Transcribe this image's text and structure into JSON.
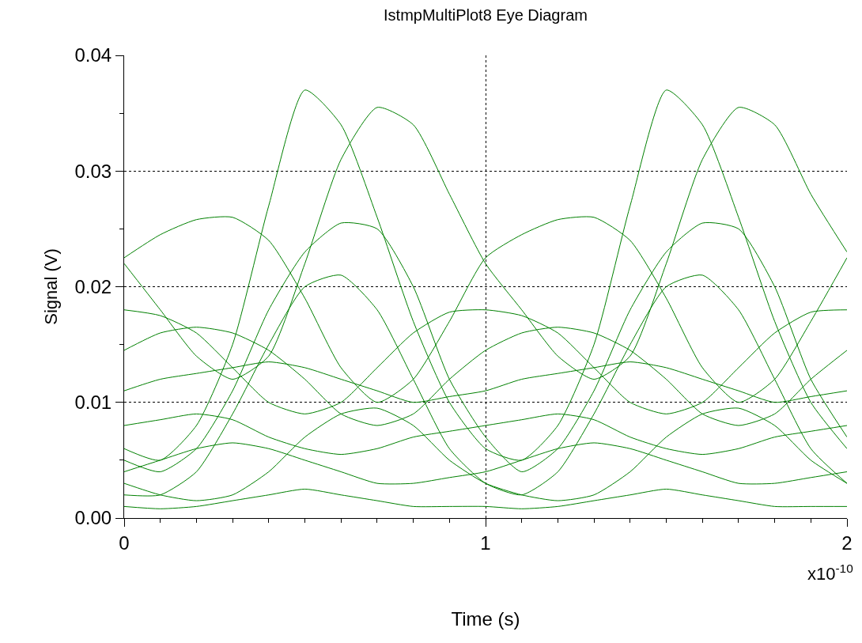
{
  "chart_data": {
    "type": "line",
    "title": "IstmpMultiPlot8 Eye Diagram",
    "xlabel": "Time (s)",
    "ylabel": "Signal (V)",
    "annotations": [
      "x10$^{-10}$"
    ],
    "x": [
      0.0,
      0.1,
      0.2,
      0.3,
      0.4,
      0.5,
      0.6,
      0.7,
      0.8,
      0.9,
      1.0,
      1.1,
      1.2,
      1.3,
      1.4,
      1.5,
      1.6,
      1.7,
      1.8,
      1.9,
      2.0
    ],
    "xlim": [
      0,
      2
    ],
    "xticks": [
      0,
      {
        "value": 0.1,
        "label": null
      },
      {
        "value": 0.2,
        "label": null
      },
      {
        "value": 0.3,
        "label": null
      },
      {
        "value": 0.4,
        "label": null
      },
      {
        "value": 0.5,
        "label": null
      },
      {
        "value": 0.6,
        "label": null
      },
      {
        "value": 0.7,
        "label": null
      },
      {
        "value": 0.8,
        "label": null
      },
      {
        "value": 0.9,
        "label": null
      },
      1,
      {
        "value": 1.1,
        "label": null
      },
      {
        "value": 1.2,
        "label": null
      },
      {
        "value": 1.3,
        "label": null
      },
      {
        "value": 1.4,
        "label": null
      },
      {
        "value": 1.5,
        "label": null
      },
      {
        "value": 1.6,
        "label": null
      },
      {
        "value": 1.7,
        "label": null
      },
      {
        "value": 1.8,
        "label": null
      },
      {
        "value": 1.9,
        "label": null
      },
      2
    ],
    "ylim": [
      0,
      0.04
    ],
    "yticks": [
      {
        "value": 0,
        "label": "0.00"
      },
      {
        "value": 0.005,
        "label": null
      },
      {
        "value": 0.01,
        "label": "0.01"
      },
      {
        "value": 0.015,
        "label": null
      },
      {
        "value": 0.02,
        "label": "0.02"
      },
      {
        "value": 0.025,
        "label": null
      },
      {
        "value": 0.03,
        "label": "0.03"
      },
      {
        "value": 0.035,
        "label": null
      },
      {
        "value": 0.04,
        "label": "0.04"
      }
    ],
    "grid": true,
    "line_style": "solid",
    "series": [
      {
        "color": "#008000",
        "values": [
          0.006,
          0.005,
          0.008,
          0.015,
          0.027,
          0.037,
          0.034,
          0.026,
          0.017,
          0.01,
          0.006,
          0.005,
          0.008,
          0.015,
          0.027,
          0.037,
          0.034,
          0.026,
          0.017,
          0.01,
          0.006
        ]
      },
      {
        "color": "#008000",
        "values": [
          0.022,
          0.018,
          0.014,
          0.012,
          0.014,
          0.022,
          0.031,
          0.0355,
          0.034,
          0.028,
          0.022,
          0.018,
          0.014,
          0.012,
          0.014,
          0.022,
          0.031,
          0.0355,
          0.034,
          0.028,
          0.023
        ]
      },
      {
        "color": "#008000",
        "values": [
          0.0225,
          0.0245,
          0.0258,
          0.026,
          0.024,
          0.019,
          0.013,
          0.01,
          0.012,
          0.017,
          0.0225,
          0.0245,
          0.0258,
          0.026,
          0.024,
          0.019,
          0.013,
          0.01,
          0.012,
          0.017,
          0.0225
        ]
      },
      {
        "color": "#008000",
        "values": [
          0.005,
          0.004,
          0.006,
          0.011,
          0.018,
          0.023,
          0.0255,
          0.025,
          0.02,
          0.012,
          0.007,
          0.004,
          0.006,
          0.011,
          0.018,
          0.023,
          0.0255,
          0.025,
          0.02,
          0.012,
          0.007
        ]
      },
      {
        "color": "#008000",
        "values": [
          0.002,
          0.002,
          0.004,
          0.009,
          0.015,
          0.02,
          0.021,
          0.018,
          0.012,
          0.006,
          0.003,
          0.002,
          0.004,
          0.009,
          0.015,
          0.02,
          0.021,
          0.018,
          0.012,
          0.006,
          0.003
        ]
      },
      {
        "color": "#008000",
        "values": [
          0.018,
          0.0175,
          0.016,
          0.013,
          0.01,
          0.009,
          0.01,
          0.013,
          0.016,
          0.0178,
          0.018,
          0.0175,
          0.016,
          0.013,
          0.01,
          0.009,
          0.01,
          0.013,
          0.016,
          0.0178,
          0.018
        ]
      },
      {
        "color": "#008000",
        "values": [
          0.011,
          0.012,
          0.0125,
          0.013,
          0.0135,
          0.013,
          0.012,
          0.011,
          0.01,
          0.0105,
          0.011,
          0.012,
          0.0125,
          0.013,
          0.0135,
          0.013,
          0.012,
          0.011,
          0.01,
          0.0105,
          0.011
        ]
      },
      {
        "color": "#008000",
        "values": [
          0.008,
          0.0085,
          0.009,
          0.0085,
          0.007,
          0.006,
          0.0055,
          0.006,
          0.007,
          0.0075,
          0.008,
          0.0085,
          0.009,
          0.0085,
          0.007,
          0.006,
          0.0055,
          0.006,
          0.007,
          0.0075,
          0.008
        ]
      },
      {
        "color": "#008000",
        "values": [
          0.004,
          0.005,
          0.006,
          0.0065,
          0.006,
          0.005,
          0.004,
          0.003,
          0.003,
          0.0035,
          0.004,
          0.005,
          0.006,
          0.0065,
          0.006,
          0.005,
          0.004,
          0.003,
          0.003,
          0.0035,
          0.004
        ]
      },
      {
        "color": "#008000",
        "values": [
          0.001,
          0.0008,
          0.001,
          0.0015,
          0.002,
          0.0025,
          0.002,
          0.0015,
          0.001,
          0.001,
          0.001,
          0.0008,
          0.001,
          0.0015,
          0.002,
          0.0025,
          0.002,
          0.0015,
          0.001,
          0.001,
          0.001
        ]
      },
      {
        "color": "#008000",
        "values": [
          0.0145,
          0.016,
          0.0165,
          0.016,
          0.0145,
          0.012,
          0.009,
          0.008,
          0.009,
          0.012,
          0.0145,
          0.016,
          0.0165,
          0.016,
          0.0145,
          0.012,
          0.009,
          0.008,
          0.009,
          0.012,
          0.0145
        ]
      },
      {
        "color": "#008000",
        "values": [
          0.003,
          0.002,
          0.0015,
          0.002,
          0.004,
          0.007,
          0.009,
          0.0095,
          0.008,
          0.005,
          0.003,
          0.002,
          0.0015,
          0.002,
          0.004,
          0.007,
          0.009,
          0.0095,
          0.008,
          0.005,
          0.003
        ]
      }
    ]
  }
}
